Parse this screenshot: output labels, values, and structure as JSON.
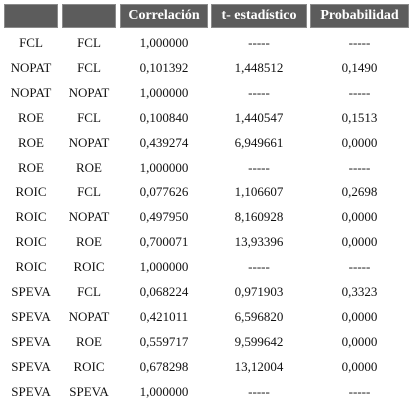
{
  "table": {
    "columns": [
      "Correlación",
      "t- estadístico",
      "Probabilidad"
    ],
    "rows": [
      [
        "FCL",
        "FCL",
        "1,000000",
        "-----",
        "-----"
      ],
      [
        "NOPAT",
        "FCL",
        "0,101392",
        "1,448512",
        "0,1490"
      ],
      [
        "NOPAT",
        "NOPAT",
        "1,000000",
        "-----",
        "-----"
      ],
      [
        "ROE",
        "FCL",
        "0,100840",
        "1,440547",
        "0,1513"
      ],
      [
        "ROE",
        "NOPAT",
        "0,439274",
        "6,949661",
        "0,0000"
      ],
      [
        "ROE",
        "ROE",
        "1,000000",
        "-----",
        "-----"
      ],
      [
        "ROIC",
        "FCL",
        "0,077626",
        "1,106607",
        "0,2698"
      ],
      [
        "ROIC",
        "NOPAT",
        "0,497950",
        "8,160928",
        "0,0000"
      ],
      [
        "ROIC",
        "ROE",
        "0,700071",
        "13,93396",
        "0,0000"
      ],
      [
        "ROIC",
        "ROIC",
        "1,000000",
        "-----",
        "-----"
      ],
      [
        "SPEVA",
        "FCL",
        "0,068224",
        "0,971903",
        "0,3323"
      ],
      [
        "SPEVA",
        "NOPAT",
        "0,421011",
        "6,596820",
        "0,0000"
      ],
      [
        "SPEVA",
        "ROE",
        "0,559717",
        "9,599642",
        "0,0000"
      ],
      [
        "SPEVA",
        "ROIC",
        "0,678298",
        "13,12004",
        "0,0000"
      ],
      [
        "SPEVA",
        "SPEVA",
        "1,000000",
        "-----",
        "-----"
      ]
    ]
  }
}
